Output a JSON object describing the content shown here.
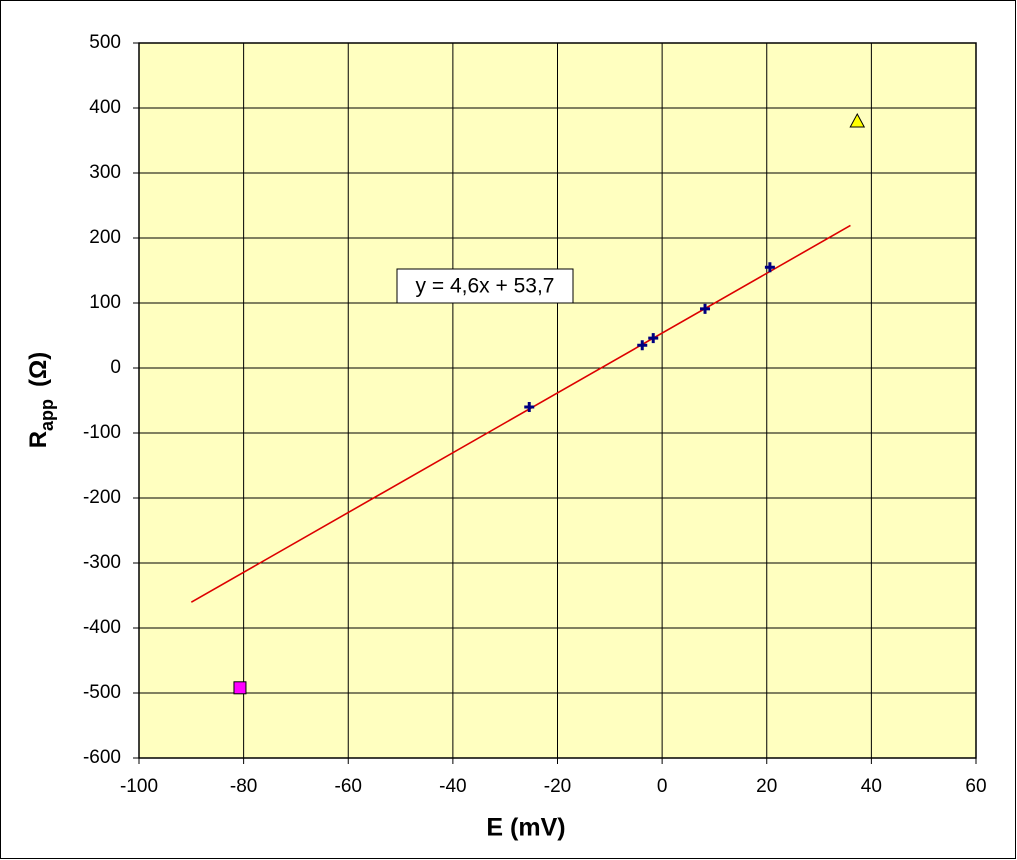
{
  "chart_data": {
    "type": "scatter",
    "x_label": "E  (mV)",
    "y_label": {
      "main": "R",
      "subscript": "app",
      "unit": "(Ω)"
    },
    "xlim": [
      -100,
      60
    ],
    "xticks": [
      -100,
      -80,
      -60,
      -40,
      -20,
      0,
      20,
      40,
      60
    ],
    "ylim": [
      -600,
      500
    ],
    "yticks": [
      -600,
      -500,
      -400,
      -300,
      -200,
      -100,
      0,
      100,
      200,
      300,
      400,
      500
    ],
    "grid": true,
    "background": "#ffffc0",
    "series": [
      {
        "color": "#000080",
        "marker": "cross",
        "x": [
          -25.4,
          -3.8,
          -1.7,
          8.2,
          20.6
        ],
        "values": [
          -60,
          35,
          46,
          91,
          155
        ]
      },
      {
        "color": "#ff00ff",
        "marker": "square",
        "x": [
          -80.7
        ],
        "values": [
          -492
        ]
      },
      {
        "color": "#ffff00",
        "marker": "triangle",
        "x": [
          37.3
        ],
        "values": [
          380
        ]
      }
    ],
    "trendline": {
      "color": "#dd0000",
      "label": "y = 4,6x + 53,7",
      "x": [
        -90,
        36
      ],
      "values": [
        -360.3,
        219.3
      ]
    }
  }
}
